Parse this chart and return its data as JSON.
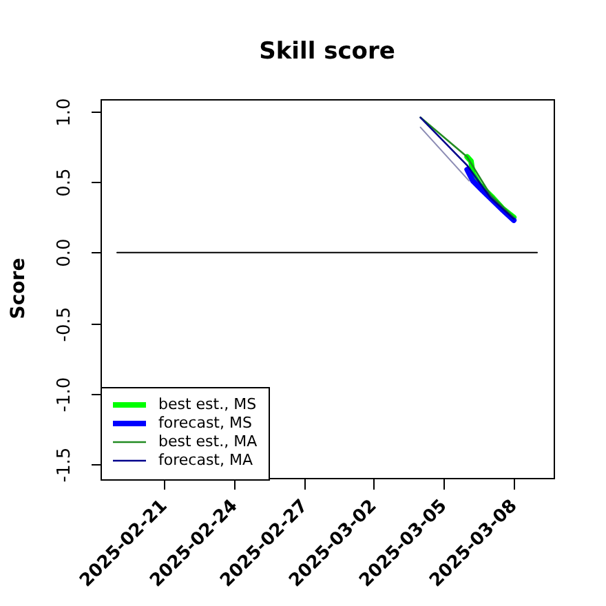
{
  "chart_data": {
    "type": "line",
    "title": "Skill score",
    "ylabel": "Score",
    "legend": "bottom left",
    "xlim": [
      "2025-02-18T07:00",
      "2025-03-09T17:00"
    ],
    "xticks": [
      "2025-02-21",
      "2025-02-24",
      "2025-02-27",
      "2025-03-02",
      "2025-03-05",
      "2025-03-08"
    ],
    "ylim": [
      -1.6,
      1.09
    ],
    "yticks": [
      {
        "value": 1,
        "label": "1.0"
      },
      0.5,
      {
        "value": 0,
        "label": "0.0"
      },
      -0.5,
      {
        "value": -1,
        "label": "-1.0"
      },
      -1.5
    ],
    "series": [
      {
        "name": "best est., MS",
        "color": "#00ff00",
        "x": [
          "2025-03-06T00:00",
          "2025-03-06T04:00",
          "2025-03-06T06:00",
          "2025-03-06T13:00",
          "2025-03-07T01:00",
          "2025-03-07T13:00",
          "2025-03-08"
        ],
        "values": [
          0.68,
          0.65,
          0.56,
          0.48,
          0.4,
          0.31,
          0.25
        ]
      },
      {
        "name": "forecast, MS",
        "color": "#0000ff",
        "x": [
          "2025-03-06T00:00",
          "2025-03-06T06:00",
          "2025-03-06T16:00",
          "2025-03-07T01:00",
          "2025-03-07T13:00",
          "2025-03-08"
        ],
        "values": [
          0.59,
          0.51,
          0.44,
          0.38,
          0.3,
          0.23
        ]
      },
      {
        "name": "best est., MA",
        "color": "#228b22",
        "x": [
          "2025-03-04",
          "2025-03-06T00:00",
          "2025-03-07",
          "2025-03-08"
        ],
        "values": [
          0.96,
          0.68,
          0.41,
          0.25
        ]
      },
      {
        "name": "forecast, MA",
        "color": "#00008b",
        "x": [
          "2025-03-04",
          "2025-03-06T00:00",
          "2025-03-07",
          "2025-03-08"
        ],
        "values": [
          0.96,
          0.62,
          0.39,
          0.24
        ]
      },
      {
        "color": "#8c8cb4",
        "x": [
          "2025-03-04",
          "2025-03-06T02:00"
        ],
        "values": [
          0.89,
          0.51
        ]
      },
      {
        "color": "#000000",
        "x": [
          "2025-02-19",
          "2025-03-09"
        ],
        "values": [
          0,
          0
        ]
      }
    ]
  }
}
